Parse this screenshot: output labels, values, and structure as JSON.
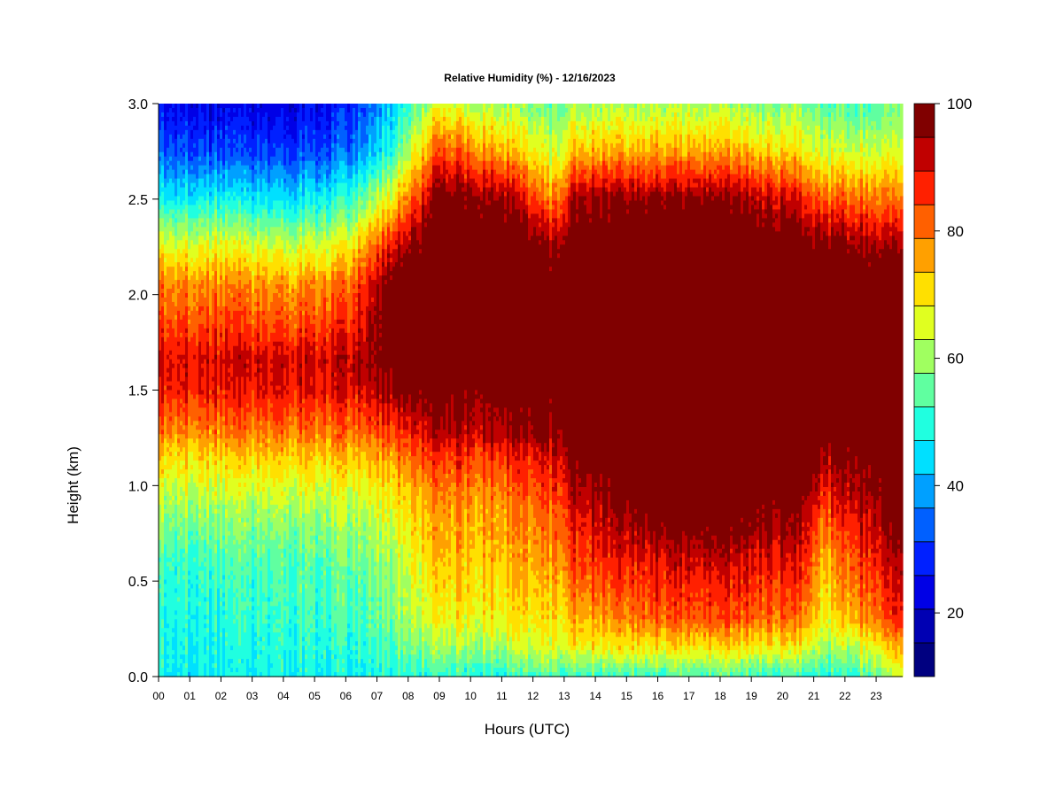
{
  "chart_data": {
    "type": "heatmap",
    "title": "Relative Humidity (%) - 12/16/2023",
    "xlabel": "Hours (UTC)",
    "ylabel": "Height (km)",
    "x_ticks": [
      "00",
      "01",
      "02",
      "03",
      "04",
      "05",
      "06",
      "07",
      "08",
      "09",
      "10",
      "11",
      "12",
      "13",
      "14",
      "15",
      "16",
      "17",
      "18",
      "19",
      "20",
      "21",
      "22",
      "23"
    ],
    "xlim": [
      0,
      23.85
    ],
    "y_ticks": [
      "0.0",
      "0.5",
      "1.0",
      "1.5",
      "2.0",
      "2.5",
      "3.0"
    ],
    "ylim": [
      0,
      3.0
    ],
    "colorbar": {
      "range": [
        10,
        100
      ],
      "step": 5,
      "tick_labels": [
        "20",
        "40",
        "60",
        "80",
        "100"
      ],
      "colors": [
        "#000080",
        "#0000b3",
        "#0000e6",
        "#0020ff",
        "#0060ff",
        "#00a0ff",
        "#00e0ff",
        "#20ffe0",
        "#60ffa0",
        "#a0ff60",
        "#e0ff20",
        "#ffe000",
        "#ffa000",
        "#ff6000",
        "#ff2000",
        "#c00000",
        "#800000"
      ]
    },
    "profiles": [
      {
        "hour": 0,
        "rh": [
          [
            0,
            45
          ],
          [
            0.3,
            47
          ],
          [
            0.6,
            50
          ],
          [
            0.9,
            58
          ],
          [
            1.15,
            68
          ],
          [
            1.3,
            76
          ],
          [
            1.5,
            84
          ],
          [
            1.65,
            86
          ],
          [
            1.85,
            80
          ],
          [
            2.05,
            75
          ],
          [
            2.25,
            64
          ],
          [
            2.5,
            45
          ],
          [
            2.75,
            32
          ],
          [
            3.0,
            25
          ]
        ]
      },
      {
        "hour": 2,
        "rh": [
          [
            0,
            45
          ],
          [
            0.3,
            47
          ],
          [
            0.6,
            50
          ],
          [
            0.9,
            58
          ],
          [
            1.15,
            68
          ],
          [
            1.3,
            76
          ],
          [
            1.5,
            84
          ],
          [
            1.65,
            86
          ],
          [
            1.85,
            80
          ],
          [
            2.05,
            75
          ],
          [
            2.25,
            64
          ],
          [
            2.5,
            45
          ],
          [
            2.75,
            30
          ],
          [
            3.0,
            22
          ]
        ]
      },
      {
        "hour": 4,
        "rh": [
          [
            0,
            45
          ],
          [
            0.3,
            48
          ],
          [
            0.6,
            50
          ],
          [
            0.9,
            58
          ],
          [
            1.15,
            68
          ],
          [
            1.3,
            76
          ],
          [
            1.5,
            84
          ],
          [
            1.65,
            86
          ],
          [
            1.85,
            78
          ],
          [
            2.05,
            72
          ],
          [
            2.25,
            60
          ],
          [
            2.5,
            42
          ],
          [
            2.75,
            28
          ],
          [
            3.0,
            20
          ]
        ]
      },
      {
        "hour": 6,
        "rh": [
          [
            0,
            46
          ],
          [
            0.3,
            50
          ],
          [
            0.6,
            53
          ],
          [
            0.9,
            60
          ],
          [
            1.15,
            70
          ],
          [
            1.3,
            78
          ],
          [
            1.5,
            85
          ],
          [
            1.65,
            88
          ],
          [
            1.85,
            82
          ],
          [
            2.05,
            76
          ],
          [
            2.25,
            65
          ],
          [
            2.5,
            48
          ],
          [
            2.75,
            33
          ],
          [
            3.0,
            26
          ]
        ]
      },
      {
        "hour": 7.5,
        "rh": [
          [
            0,
            48
          ],
          [
            0.3,
            55
          ],
          [
            0.6,
            58
          ],
          [
            0.9,
            65
          ],
          [
            1.15,
            74
          ],
          [
            1.3,
            82
          ],
          [
            1.5,
            92
          ],
          [
            1.65,
            96
          ],
          [
            1.85,
            98
          ],
          [
            2.05,
            96
          ],
          [
            2.25,
            86
          ],
          [
            2.5,
            66
          ],
          [
            2.75,
            48
          ],
          [
            3.0,
            42
          ]
        ]
      },
      {
        "hour": 9,
        "rh": [
          [
            0,
            48
          ],
          [
            0.15,
            58
          ],
          [
            0.3,
            65
          ],
          [
            0.6,
            70
          ],
          [
            0.9,
            74
          ],
          [
            1.15,
            82
          ],
          [
            1.3,
            90
          ],
          [
            1.5,
            95
          ],
          [
            1.65,
            98
          ],
          [
            1.85,
            99
          ],
          [
            2.05,
            99
          ],
          [
            2.25,
            99
          ],
          [
            2.5,
            95
          ],
          [
            2.75,
            80
          ],
          [
            3.0,
            62
          ]
        ]
      },
      {
        "hour": 11,
        "rh": [
          [
            0,
            48
          ],
          [
            0.15,
            58
          ],
          [
            0.3,
            65
          ],
          [
            0.6,
            70
          ],
          [
            0.9,
            74
          ],
          [
            1.15,
            82
          ],
          [
            1.3,
            90
          ],
          [
            1.5,
            95
          ],
          [
            1.65,
            98
          ],
          [
            1.85,
            99
          ],
          [
            2.05,
            99
          ],
          [
            2.25,
            99
          ],
          [
            2.5,
            92
          ],
          [
            2.75,
            72
          ],
          [
            3.0,
            58
          ]
        ]
      },
      {
        "hour": 12.6,
        "rh": [
          [
            0,
            50
          ],
          [
            0.15,
            62
          ],
          [
            0.3,
            66
          ],
          [
            0.6,
            72
          ],
          [
            0.9,
            78
          ],
          [
            1.15,
            85
          ],
          [
            1.3,
            92
          ],
          [
            1.5,
            96
          ],
          [
            1.65,
            98
          ],
          [
            1.85,
            99
          ],
          [
            2.05,
            98
          ],
          [
            2.25,
            90
          ],
          [
            2.5,
            74
          ],
          [
            2.75,
            60
          ],
          [
            3.0,
            52
          ]
        ]
      },
      {
        "hour": 13.5,
        "rh": [
          [
            0,
            50
          ],
          [
            0.15,
            66
          ],
          [
            0.3,
            72
          ],
          [
            0.6,
            82
          ],
          [
            0.9,
            88
          ],
          [
            1.15,
            96
          ],
          [
            1.3,
            99
          ],
          [
            1.5,
            99
          ],
          [
            1.65,
            99
          ],
          [
            1.85,
            99
          ],
          [
            2.05,
            99
          ],
          [
            2.25,
            99
          ],
          [
            2.5,
            92
          ],
          [
            2.75,
            72
          ],
          [
            3.0,
            58
          ]
        ]
      },
      {
        "hour": 16,
        "rh": [
          [
            0,
            50
          ],
          [
            0.15,
            66
          ],
          [
            0.3,
            78
          ],
          [
            0.6,
            86
          ],
          [
            0.9,
            97
          ],
          [
            1.15,
            99
          ],
          [
            1.3,
            99
          ],
          [
            1.5,
            99
          ],
          [
            1.65,
            99
          ],
          [
            1.85,
            99
          ],
          [
            2.05,
            99
          ],
          [
            2.25,
            99
          ],
          [
            2.5,
            92
          ],
          [
            2.75,
            72
          ],
          [
            3.0,
            58
          ]
        ]
      },
      {
        "hour": 19,
        "rh": [
          [
            0,
            50
          ],
          [
            0.15,
            66
          ],
          [
            0.3,
            78
          ],
          [
            0.6,
            86
          ],
          [
            0.9,
            96
          ],
          [
            1.15,
            99
          ],
          [
            1.3,
            99
          ],
          [
            1.5,
            99
          ],
          [
            1.65,
            99
          ],
          [
            1.85,
            99
          ],
          [
            2.05,
            99
          ],
          [
            2.25,
            99
          ],
          [
            2.5,
            90
          ],
          [
            2.75,
            70
          ],
          [
            3.0,
            56
          ]
        ]
      },
      {
        "hour": 20.8,
        "rh": [
          [
            0,
            50
          ],
          [
            0.15,
            64
          ],
          [
            0.3,
            76
          ],
          [
            0.6,
            84
          ],
          [
            0.9,
            92
          ],
          [
            1.15,
            98
          ],
          [
            1.3,
            99
          ],
          [
            1.5,
            99
          ],
          [
            1.65,
            99
          ],
          [
            1.85,
            99
          ],
          [
            2.05,
            99
          ],
          [
            2.25,
            96
          ],
          [
            2.5,
            84
          ],
          [
            2.75,
            66
          ],
          [
            3.0,
            55
          ]
        ]
      },
      {
        "hour": 21.3,
        "rh": [
          [
            0,
            46
          ],
          [
            0.15,
            56
          ],
          [
            0.3,
            62
          ],
          [
            0.6,
            68
          ],
          [
            0.9,
            78
          ],
          [
            1.15,
            88
          ],
          [
            1.3,
            95
          ],
          [
            1.5,
            99
          ],
          [
            1.65,
            99
          ],
          [
            1.85,
            99
          ],
          [
            2.05,
            99
          ],
          [
            2.25,
            92
          ],
          [
            2.5,
            76
          ],
          [
            2.75,
            60
          ],
          [
            3.0,
            50
          ]
        ]
      },
      {
        "hour": 22.2,
        "rh": [
          [
            0,
            48
          ],
          [
            0.15,
            60
          ],
          [
            0.3,
            72
          ],
          [
            0.6,
            80
          ],
          [
            0.9,
            88
          ],
          [
            1.15,
            94
          ],
          [
            1.3,
            98
          ],
          [
            1.5,
            99
          ],
          [
            1.65,
            99
          ],
          [
            1.85,
            99
          ],
          [
            2.05,
            99
          ],
          [
            2.25,
            93
          ],
          [
            2.5,
            78
          ],
          [
            2.75,
            62
          ],
          [
            3.0,
            52
          ]
        ]
      },
      {
        "hour": 23.9,
        "rh": [
          [
            0,
            60
          ],
          [
            0.15,
            70
          ],
          [
            0.3,
            82
          ],
          [
            0.6,
            88
          ],
          [
            0.9,
            94
          ],
          [
            1.15,
            98
          ],
          [
            1.3,
            99
          ],
          [
            1.5,
            99
          ],
          [
            1.65,
            99
          ],
          [
            1.85,
            99
          ],
          [
            2.05,
            98
          ],
          [
            2.25,
            88
          ],
          [
            2.5,
            74
          ],
          [
            2.75,
            60
          ],
          [
            3.0,
            52
          ]
        ]
      }
    ]
  }
}
